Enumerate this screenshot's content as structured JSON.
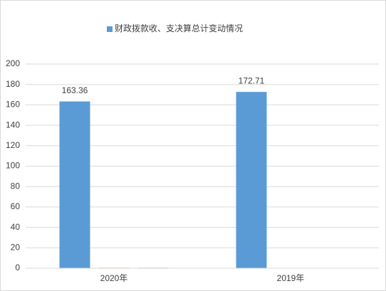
{
  "chart_data": {
    "type": "bar",
    "categories": [
      "2020年",
      "2019年"
    ],
    "series": [
      {
        "name": "财政拨款收、支决算总计变动情况",
        "color": "#5b9bd5",
        "values": [
          163.36,
          172.71
        ],
        "data_labels": true
      },
      {
        "color": "#ed7d31",
        "values": [
          0.5,
          0
        ]
      },
      {
        "color": "#a5a5a5",
        "values": [
          0.5,
          0
        ]
      }
    ],
    "ylim": [
      0,
      200
    ],
    "yticks": [
      0,
      20,
      40,
      60,
      80,
      100,
      120,
      140,
      160,
      180,
      200
    ],
    "grid": true,
    "legend": "top"
  }
}
